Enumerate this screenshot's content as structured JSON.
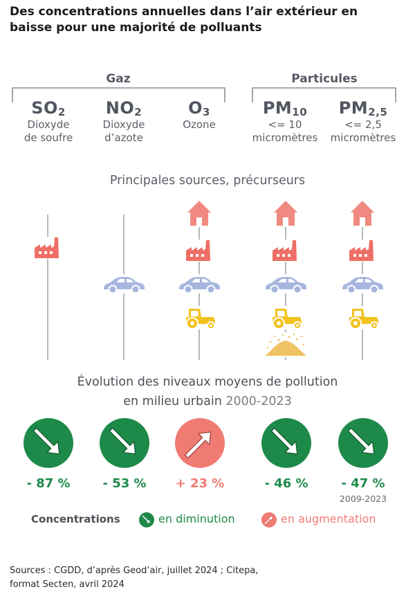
{
  "title": "Des concentrations annuelles dans l’air extérieur en baisse pour une majorité de polluants",
  "groups": {
    "gas": "Gaz",
    "particles": "Particules"
  },
  "pollutants": [
    {
      "symbol": "SO",
      "sub": "2",
      "name_line1": "Dioxyde",
      "name_line2": "de soufre"
    },
    {
      "symbol": "NO",
      "sub": "2",
      "name_line1": "Dioxyde",
      "name_line2": "d’azote"
    },
    {
      "symbol": "O",
      "sub": "3",
      "name_line1": "Ozone",
      "name_line2": ""
    },
    {
      "symbol": "PM",
      "sub": "10",
      "name_line1": "<= 10",
      "name_line2": "micromètres"
    },
    {
      "symbol": "PM",
      "sub": "2,5",
      "name_line1": "<= 2,5",
      "name_line2": "micromètres"
    }
  ],
  "sources_title": "Principales sources, précurseurs",
  "source_icons": {
    "SO2": [
      "factory"
    ],
    "NO2": [
      "car"
    ],
    "O3": [
      "house",
      "factory",
      "car",
      "tractor"
    ],
    "PM10": [
      "house",
      "factory",
      "car",
      "tractor",
      "dust"
    ],
    "PM2.5": [
      "house",
      "factory",
      "car",
      "tractor"
    ]
  },
  "evolution_title_line1": "Évolution des niveaux moyens de pollution",
  "evolution_title_line2": "en milieu urbain",
  "evolution_period": "2000-2023",
  "evolution": [
    {
      "pollutant": "SO2",
      "direction": "down",
      "value": "- 87 %",
      "period": ""
    },
    {
      "pollutant": "NO2",
      "direction": "down",
      "value": "- 53 %",
      "period": ""
    },
    {
      "pollutant": "O3",
      "direction": "up",
      "value": "+ 23 %",
      "period": ""
    },
    {
      "pollutant": "PM10",
      "direction": "down",
      "value": "- 46 %",
      "period": ""
    },
    {
      "pollutant": "PM2.5",
      "direction": "down",
      "value": "- 47 %",
      "period": "2009-2023"
    }
  ],
  "legend": {
    "label": "Concentrations",
    "down": "en diminution",
    "up": "en augmentation"
  },
  "colors": {
    "down": "#1e8a4a",
    "up": "#f07b73",
    "house": "#f08a80",
    "factory": "#ee6f65",
    "car": "#a6b6de",
    "tractor": "#f2c21e",
    "dust": "#eec462"
  },
  "sources_note_line1": "Sources : CGDD, d’après Geod’air, juillet 2024 ; Citepa,",
  "sources_note_line2": "format Secten, avril 2024"
}
